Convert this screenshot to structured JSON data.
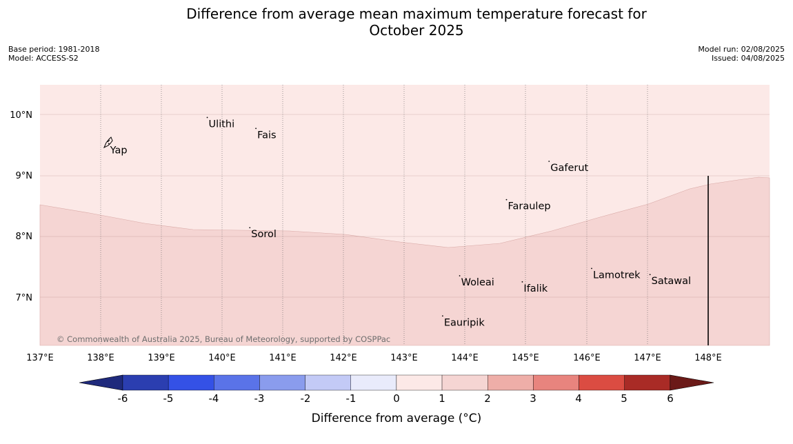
{
  "title_line1": "Difference from average mean maximum temperature forecast for",
  "title_line2": "October 2025",
  "base_period": "Base period: 1981-2018",
  "model": "Model: ACCESS-S2",
  "model_run": "Model run: 02/08/2025",
  "issued": "Issued: 04/08/2025",
  "copyright": "© Commonwealth of Australia 2025, Bureau of Meteorology, supported by COSPPac",
  "lat_labels": [
    "10°N",
    "9°N",
    "8°N",
    "7°N"
  ],
  "lon_labels": [
    "137°E",
    "138°E",
    "139°E",
    "140°E",
    "141°E",
    "142°E",
    "143°E",
    "144°E",
    "145°E",
    "146°E",
    "147°E",
    "148°E"
  ],
  "places": [
    {
      "name": "Ulithi",
      "lon": 139.75,
      "lat": 9.95
    },
    {
      "name": "Fais",
      "lon": 140.55,
      "lat": 9.77
    },
    {
      "name": "Yap",
      "lon": 138.13,
      "lat": 9.52
    },
    {
      "name": "Gaferut",
      "lon": 145.37,
      "lat": 9.23
    },
    {
      "name": "Faraulep",
      "lon": 144.67,
      "lat": 8.6
    },
    {
      "name": "Sorol",
      "lon": 140.45,
      "lat": 8.14
    },
    {
      "name": "Lamotrek",
      "lon": 146.07,
      "lat": 7.47
    },
    {
      "name": "Woleai",
      "lon": 143.9,
      "lat": 7.35
    },
    {
      "name": "Ifalik",
      "lon": 144.93,
      "lat": 7.25
    },
    {
      "name": "Satawal",
      "lon": 147.03,
      "lat": 7.37
    },
    {
      "name": "Eauripik",
      "lon": 143.62,
      "lat": 6.69
    }
  ],
  "colorbar": {
    "title": "Difference from average (°C)",
    "tick_labels": [
      "-6",
      "-5",
      "-4",
      "-3",
      "-2",
      "-1",
      "0",
      "1",
      "2",
      "3",
      "4",
      "5",
      "6"
    ],
    "colors": [
      "#1f2a7c",
      "#2b3eb0",
      "#3451e6",
      "#5a73e8",
      "#8a9ced",
      "#c3caf6",
      "#e9ebfb",
      "#fce9e7",
      "#f5d5d3",
      "#eeaea8",
      "#e8847e",
      "#db4c42",
      "#a92b26",
      "#6b1a18"
    ]
  },
  "colors": {
    "band_0_1": "#fce9e7",
    "band_1_2": "#f5d5d3",
    "grid": "#999999"
  }
}
